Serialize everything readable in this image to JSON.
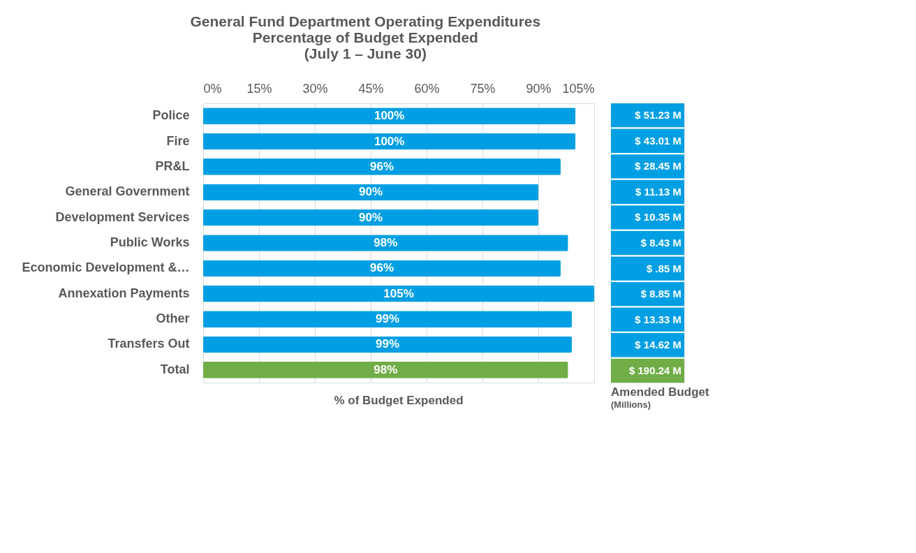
{
  "chart_data": [
    {
      "type": "bar",
      "orientation": "horizontal",
      "title": "General Fund Department Operating Expenditures\nPercentage of Budget Expended\n(July 1 – June 30)",
      "xlabel": "% of Budget Expended",
      "categories": [
        "Police",
        "Fire",
        "PR&L",
        "General Government",
        "Development Services",
        "Public Works",
        "Economic Development &…",
        "Annexation Payments",
        "Other",
        "Transfers Out",
        "Total"
      ],
      "values": [
        100,
        100,
        96,
        90,
        90,
        98,
        96,
        105,
        99,
        99,
        98
      ],
      "value_labels": [
        "100%",
        "100%",
        "96%",
        "90%",
        "90%",
        "98%",
        "96%",
        "105%",
        "99%",
        "99%",
        "98%"
      ],
      "colors": [
        "#009fe3",
        "#009fe3",
        "#009fe3",
        "#009fe3",
        "#009fe3",
        "#009fe3",
        "#009fe3",
        "#009fe3",
        "#009fe3",
        "#009fe3",
        "#70ad47"
      ],
      "xlim": [
        0,
        105
      ],
      "xticks": [
        {
          "value": 0,
          "label": "0%"
        },
        {
          "value": 15,
          "label": "15%"
        },
        {
          "value": 30,
          "label": "30%"
        },
        {
          "value": 45,
          "label": "45%"
        },
        {
          "value": 60,
          "label": "60%"
        },
        {
          "value": 75,
          "label": "75%"
        },
        {
          "value": 90,
          "label": "90%"
        },
        {
          "value": 105,
          "label": "105%"
        }
      ],
      "grid": "x"
    },
    {
      "type": "other",
      "title": "Amended Budget",
      "subtitle": "(Millions)",
      "annotations": [
        "$ 51.23 M",
        "$ 43.01 M",
        "$ 28.45 M",
        "$ 11.13 M",
        "$ 10.35 M",
        "$ 8.43 M",
        "$ .85 M",
        "$ 8.85 M",
        "$ 13.33 M",
        "$ 14.62 M",
        "$ 190.24 M"
      ],
      "colors": [
        "#009fe3",
        "#009fe3",
        "#009fe3",
        "#009fe3",
        "#009fe3",
        "#009fe3",
        "#009fe3",
        "#009fe3",
        "#009fe3",
        "#009fe3",
        "#70ad47"
      ]
    }
  ]
}
